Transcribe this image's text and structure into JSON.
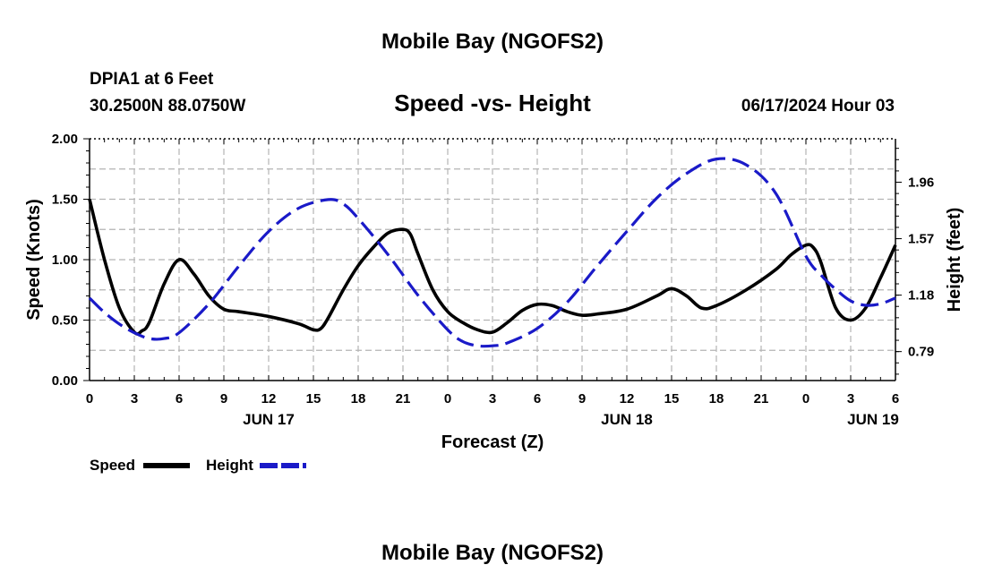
{
  "page": {
    "title_top": "Mobile Bay (NGOFS2)",
    "title_bottom": "Mobile Bay (NGOFS2)",
    "station": "DPIA1 at 6 Feet",
    "location": "30.2500N  88.0750W",
    "timestamp": "06/17/2024 Hour 03"
  },
  "chart_data": {
    "type": "line",
    "title": "Speed -vs- Height",
    "xlabel": "Forecast (Z)",
    "ylabel_left": "Speed (Knots)",
    "ylabel_right": "Height (feet)",
    "x_unit": "hours from 2024-06-16 00Z",
    "xlim": [
      0,
      54
    ],
    "x_tick_step": 3,
    "x_tick_labels": [
      "0",
      "3",
      "6",
      "9",
      "12",
      "15",
      "18",
      "21",
      "0",
      "3",
      "6",
      "9",
      "12",
      "15",
      "18",
      "21",
      "0",
      "3",
      "6"
    ],
    "day_labels": [
      {
        "label": "JUN 17",
        "x": 12
      },
      {
        "label": "JUN 18",
        "x": 36
      },
      {
        "label": "JUN 19",
        "x": 52.5
      }
    ],
    "ylim_left": [
      0,
      2.0
    ],
    "y_ticks_left": [
      "0.00",
      "0.50",
      "1.00",
      "1.50",
      "2.00"
    ],
    "y_ticks_left_values": [
      0,
      0.5,
      1.0,
      1.5,
      2.0
    ],
    "ylim_right": [
      0.59,
      2.26
    ],
    "y_ticks_right": [
      "0.79",
      "1.18",
      "1.57",
      "1.96"
    ],
    "y_ticks_right_values": [
      0.79,
      1.18,
      1.57,
      1.96
    ],
    "grid": true,
    "legend_position": "bottom-left",
    "series": [
      {
        "name": "Speed",
        "axis": "left",
        "color": "#000000",
        "style": "solid",
        "x": [
          0,
          1,
          2,
          3,
          3.5,
          4,
          5,
          6,
          7,
          8,
          9,
          10,
          12,
          14,
          15,
          15.5,
          16,
          17,
          18,
          19,
          20,
          21,
          21.5,
          22,
          23,
          24,
          25,
          26,
          27,
          28,
          29,
          30,
          31,
          32,
          33,
          34,
          36,
          38,
          39,
          40,
          41,
          42,
          44,
          46,
          47,
          48,
          48.5,
          49,
          50,
          51,
          52,
          53,
          54
        ],
        "y": [
          1.5,
          1.0,
          0.6,
          0.4,
          0.41,
          0.48,
          0.8,
          1.0,
          0.88,
          0.7,
          0.59,
          0.57,
          0.53,
          0.47,
          0.42,
          0.43,
          0.52,
          0.75,
          0.95,
          1.1,
          1.22,
          1.25,
          1.21,
          1.05,
          0.75,
          0.57,
          0.48,
          0.42,
          0.4,
          0.48,
          0.58,
          0.63,
          0.62,
          0.57,
          0.54,
          0.55,
          0.59,
          0.7,
          0.76,
          0.7,
          0.6,
          0.62,
          0.75,
          0.92,
          1.04,
          1.12,
          1.1,
          0.98,
          0.6,
          0.5,
          0.6,
          0.85,
          1.12
        ]
      },
      {
        "name": "Height",
        "axis": "right",
        "color": "#1a1ac8",
        "style": "dashed",
        "x": [
          0,
          1,
          2,
          3,
          4,
          5,
          6,
          8,
          10,
          12,
          14,
          16,
          17,
          18,
          20,
          22,
          24,
          25,
          26,
          27,
          28,
          30,
          32,
          34,
          36,
          38,
          40,
          42,
          44,
          46,
          48,
          49,
          50,
          51,
          52,
          53,
          54
        ],
        "y": [
          1.16,
          1.06,
          0.98,
          0.92,
          0.88,
          0.88,
          0.92,
          1.12,
          1.38,
          1.62,
          1.78,
          1.84,
          1.81,
          1.71,
          1.46,
          1.18,
          0.94,
          0.86,
          0.83,
          0.83,
          0.85,
          0.95,
          1.13,
          1.38,
          1.62,
          1.85,
          2.02,
          2.12,
          2.08,
          1.88,
          1.45,
          1.32,
          1.22,
          1.14,
          1.11,
          1.12,
          1.16
        ]
      }
    ],
    "legend": [
      {
        "label": "Speed",
        "color": "#000000",
        "style": "solid"
      },
      {
        "label": "Height",
        "color": "#1a1ac8",
        "style": "dashed"
      }
    ]
  }
}
